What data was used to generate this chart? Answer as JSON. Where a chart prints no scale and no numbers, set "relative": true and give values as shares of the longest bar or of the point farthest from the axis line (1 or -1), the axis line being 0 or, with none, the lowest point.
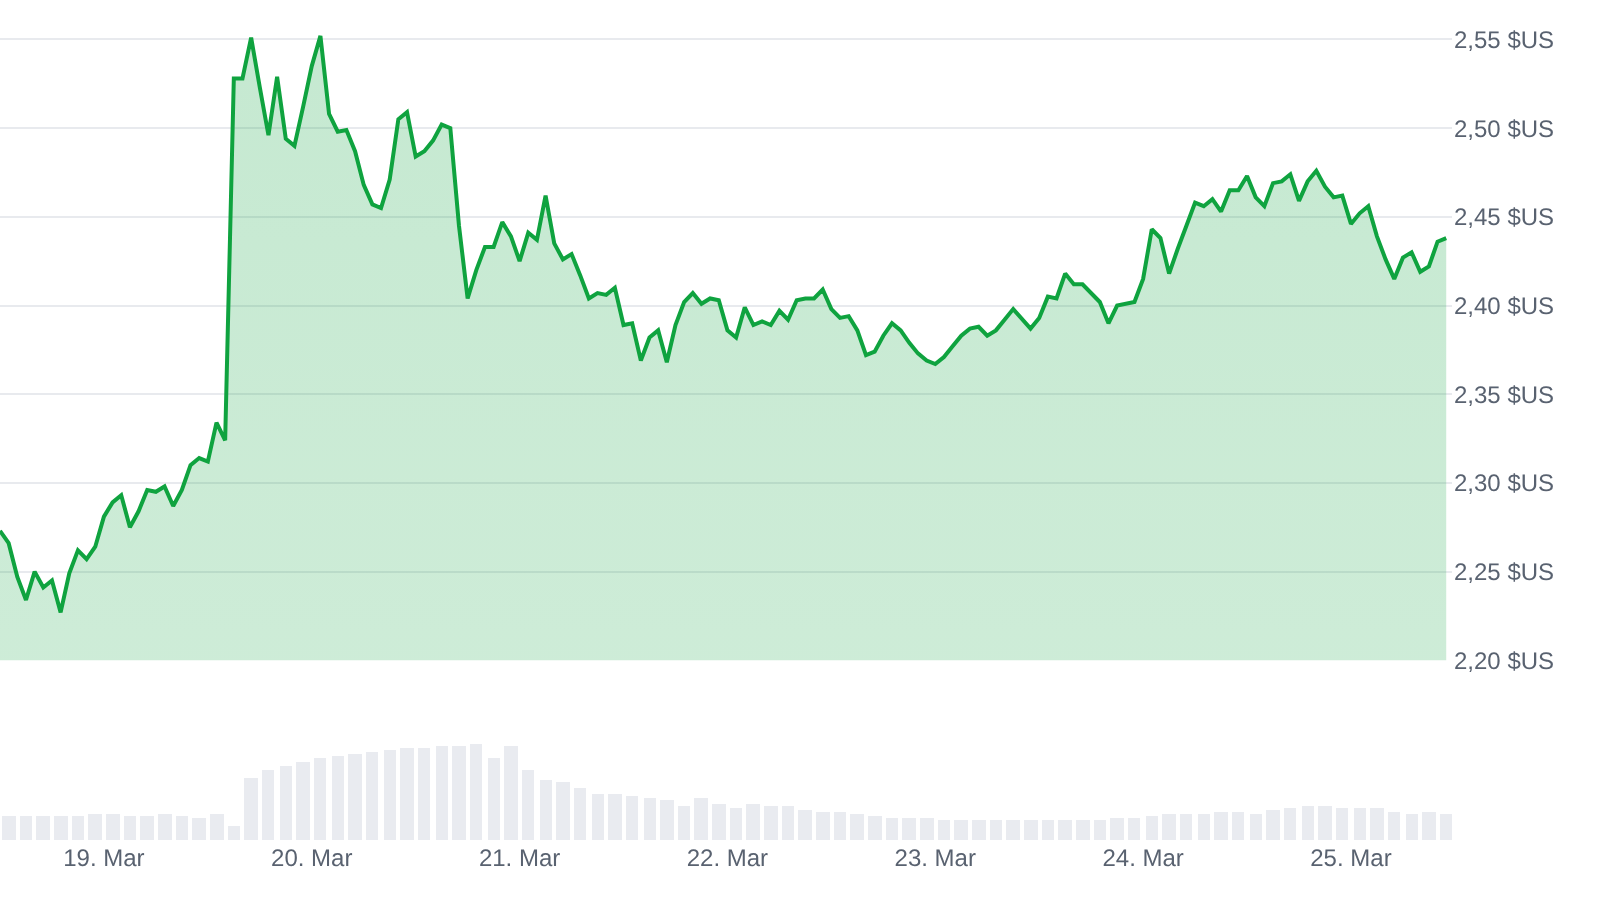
{
  "chart_data": [
    {
      "type": "area",
      "color": "#0fa33f",
      "grid": "y",
      "tick_labels": "y",
      "marker": "none",
      "xlim": [
        "--03-18T12:00",
        "--03-25T11:40"
      ],
      "ylim": [
        2.2,
        2.57
      ],
      "yticks": [
        {
          "value": 2.2,
          "label": "2,20 $US"
        },
        {
          "value": 2.25,
          "label": "2,25 $US"
        },
        {
          "value": 2.3,
          "label": "2,30 $US"
        },
        {
          "value": 2.35,
          "label": "2,35 $US"
        },
        {
          "value": 2.4,
          "label": "2,40 $US"
        },
        {
          "value": 2.45,
          "label": "2,45 $US"
        },
        {
          "value": 2.5,
          "label": "2,50 $US"
        },
        {
          "value": 2.55,
          "label": "2,55 $US"
        }
      ],
      "x": [
        "--03-18T12:00",
        "--03-18T13:00",
        "--03-18T14:00",
        "--03-18T15:00",
        "--03-18T16:00",
        "--03-18T17:00",
        "--03-18T18:00",
        "--03-18T19:00",
        "--03-18T20:00",
        "--03-18T21:00",
        "--03-18T22:00",
        "--03-18T23:00",
        "--03-19T00:00",
        "--03-19T01:00",
        "--03-19T02:00",
        "--03-19T03:00",
        "--03-19T04:00",
        "--03-19T05:00",
        "--03-19T06:00",
        "--03-19T07:00",
        "--03-19T08:00",
        "--03-19T09:00",
        "--03-19T10:00",
        "--03-19T11:00",
        "--03-19T12:00",
        "--03-19T13:00",
        "--03-19T14:00",
        "--03-19T15:00",
        "--03-19T16:00",
        "--03-19T17:00",
        "--03-19T18:00",
        "--03-19T19:00",
        "--03-19T20:00",
        "--03-19T21:00",
        "--03-19T22:00",
        "--03-19T23:00",
        "--03-20T00:00",
        "--03-20T01:00",
        "--03-20T02:00",
        "--03-20T03:00",
        "--03-20T04:00",
        "--03-20T05:00",
        "--03-20T06:00",
        "--03-20T07:00",
        "--03-20T08:00",
        "--03-20T09:00",
        "--03-20T10:00",
        "--03-20T11:00",
        "--03-20T12:00",
        "--03-20T13:00",
        "--03-20T14:00",
        "--03-20T15:00",
        "--03-20T16:00",
        "--03-20T17:00",
        "--03-20T18:00",
        "--03-20T19:00",
        "--03-20T20:00",
        "--03-20T21:00",
        "--03-20T22:00",
        "--03-20T23:00",
        "--03-21T00:00",
        "--03-21T01:00",
        "--03-21T02:00",
        "--03-21T03:00",
        "--03-21T04:00",
        "--03-21T05:00",
        "--03-21T06:00",
        "--03-21T07:00",
        "--03-21T08:00",
        "--03-21T09:00",
        "--03-21T10:00",
        "--03-21T11:00",
        "--03-21T12:00",
        "--03-21T13:00",
        "--03-21T14:00",
        "--03-21T15:00",
        "--03-21T16:00",
        "--03-21T17:00",
        "--03-21T18:00",
        "--03-21T19:00",
        "--03-21T20:00",
        "--03-21T21:00",
        "--03-21T22:00",
        "--03-21T23:00",
        "--03-22T00:00",
        "--03-22T01:00",
        "--03-22T02:00",
        "--03-22T03:00",
        "--03-22T04:00",
        "--03-22T05:00",
        "--03-22T06:00",
        "--03-22T07:00",
        "--03-22T08:00",
        "--03-22T09:00",
        "--03-22T10:00",
        "--03-22T11:00",
        "--03-22T12:00",
        "--03-22T13:00",
        "--03-22T14:00",
        "--03-22T15:00",
        "--03-22T16:00",
        "--03-22T17:00",
        "--03-22T18:00",
        "--03-22T19:00",
        "--03-22T20:00",
        "--03-22T21:00",
        "--03-22T22:00",
        "--03-22T23:00",
        "--03-23T00:00",
        "--03-23T01:00",
        "--03-23T02:00",
        "--03-23T03:00",
        "--03-23T04:00",
        "--03-23T05:00",
        "--03-23T06:00",
        "--03-23T07:00",
        "--03-23T08:00",
        "--03-23T09:00",
        "--03-23T11:00",
        "--03-23T12:00",
        "--03-23T13:00",
        "--03-23T14:00",
        "--03-23T15:00",
        "--03-23T16:00",
        "--03-23T17:00",
        "--03-23T19:00",
        "--03-23T20:00",
        "--03-23T21:00",
        "--03-23T23:00",
        "--03-24T00:00",
        "--03-24T01:00",
        "--03-24T02:00",
        "--03-24T03:00",
        "--03-24T04:00",
        "--03-24T05:00",
        "--03-24T06:00",
        "--03-24T07:00",
        "--03-24T08:00",
        "--03-24T09:00",
        "--03-24T10:00",
        "--03-24T11:00",
        "--03-24T12:00",
        "--03-24T13:00",
        "--03-24T14:00",
        "--03-24T15:00",
        "--03-24T16:00",
        "--03-24T17:00",
        "--03-24T18:00",
        "--03-24T19:00",
        "--03-24T20:00",
        "--03-24T21:00",
        "--03-24T22:00",
        "--03-24T23:00",
        "--03-25T00:00",
        "--03-25T01:00",
        "--03-25T02:00",
        "--03-25T03:00",
        "--03-25T04:00",
        "--03-25T05:00",
        "--03-25T06:00",
        "--03-25T07:00",
        "--03-25T08:00",
        "--03-25T09:00",
        "--03-25T10:00",
        "--03-25T11:00"
      ],
      "values": [
        2.273,
        2.266,
        2.247,
        2.234,
        2.25,
        2.241,
        2.245,
        2.227,
        2.249,
        2.262,
        2.257,
        2.264,
        2.281,
        2.289,
        2.293,
        2.275,
        2.284,
        2.296,
        2.295,
        2.298,
        2.287,
        2.296,
        2.31,
        2.314,
        2.312,
        2.334,
        2.324,
        2.528,
        2.528,
        2.551,
        2.523,
        2.496,
        2.529,
        2.494,
        2.49,
        2.512,
        2.535,
        2.552,
        2.508,
        2.498,
        2.499,
        2.487,
        2.468,
        2.457,
        2.455,
        2.471,
        2.505,
        2.509,
        2.484,
        2.487,
        2.493,
        2.502,
        2.5,
        2.445,
        2.404,
        2.42,
        2.433,
        2.433,
        2.447,
        2.439,
        2.425,
        2.441,
        2.437,
        2.462,
        2.435,
        2.426,
        2.429,
        2.417,
        2.404,
        2.407,
        2.406,
        2.41,
        2.389,
        2.39,
        2.369,
        2.382,
        2.386,
        2.368,
        2.389,
        2.402,
        2.407,
        2.401,
        2.404,
        2.403,
        2.386,
        2.382,
        2.399,
        2.389,
        2.391,
        2.389,
        2.397,
        2.392,
        2.403,
        2.404,
        2.404,
        2.409,
        2.398,
        2.393,
        2.394,
        2.386,
        2.372,
        2.374,
        2.383,
        2.39,
        2.386,
        2.379,
        2.373,
        2.369,
        2.367,
        2.371,
        2.377,
        2.383,
        2.387,
        2.388,
        2.383,
        2.386,
        2.392,
        2.398,
        2.387,
        2.393,
        2.405,
        2.404,
        2.418,
        2.412,
        2.412,
        2.402,
        2.39,
        2.4,
        2.402,
        2.415,
        2.443,
        2.438,
        2.418,
        2.432,
        2.445,
        2.458,
        2.456,
        2.46,
        2.453,
        2.465,
        2.465,
        2.473,
        2.461,
        2.456,
        2.469,
        2.47,
        2.474,
        2.459,
        2.47,
        2.476,
        2.467,
        2.461,
        2.462,
        2.446,
        2.452,
        2.456,
        2.439,
        2.426,
        2.415,
        2.427,
        2.43,
        2.419,
        2.422,
        2.436,
        2.438
      ]
    },
    {
      "type": "bar",
      "relative": true,
      "color": "#e9ebf0",
      "tick_labels": "x",
      "xlim": [
        "--03-18T12:00",
        "--03-25T11:40"
      ],
      "xticks": [
        {
          "value": "--03-19",
          "label": "19. Mar"
        },
        {
          "value": "--03-20",
          "label": "20. Mar"
        },
        {
          "value": "--03-21",
          "label": "21. Mar"
        },
        {
          "value": "--03-22",
          "label": "22. Mar"
        },
        {
          "value": "--03-23",
          "label": "23. Mar"
        },
        {
          "value": "--03-24",
          "label": "24. Mar"
        },
        {
          "value": "--03-25",
          "label": "25. Mar"
        }
      ],
      "x": [
        "--03-18T13:00",
        "--03-18T15:00",
        "--03-18T17:00",
        "--03-18T19:00",
        "--03-18T21:00",
        "--03-18T23:00",
        "--03-19T01:00",
        "--03-19T03:00",
        "--03-19T05:00",
        "--03-19T07:00",
        "--03-19T09:00",
        "--03-19T11:00",
        "--03-19T13:00",
        "--03-19T15:00",
        "--03-19T17:00",
        "--03-19T19:00",
        "--03-19T21:00",
        "--03-19T23:00",
        "--03-20T01:00",
        "--03-20T03:00",
        "--03-20T05:00",
        "--03-20T07:00",
        "--03-20T09:00",
        "--03-20T11:00",
        "--03-20T13:00",
        "--03-20T15:00",
        "--03-20T17:00",
        "--03-20T19:00",
        "--03-20T21:00",
        "--03-20T23:00",
        "--03-21T01:00",
        "--03-21T03:00",
        "--03-21T05:00",
        "--03-21T07:00",
        "--03-21T09:00",
        "--03-21T11:00",
        "--03-21T13:00",
        "--03-21T15:00",
        "--03-21T17:00",
        "--03-21T19:00",
        "--03-21T21:00",
        "--03-21T23:00",
        "--03-22T01:00",
        "--03-22T03:00",
        "--03-22T05:00",
        "--03-22T07:00",
        "--03-22T09:00",
        "--03-22T11:00",
        "--03-22T13:00",
        "--03-22T15:00",
        "--03-22T17:00",
        "--03-22T19:00",
        "--03-22T21:00",
        "--03-22T23:00",
        "--03-23T01:00",
        "--03-23T03:00",
        "--03-23T05:00",
        "--03-23T07:00",
        "--03-23T09:00",
        "--03-23T11:00",
        "--03-23T13:00",
        "--03-23T15:00",
        "--03-23T17:00",
        "--03-23T19:00",
        "--03-23T21:00",
        "--03-23T23:00",
        "--03-24T01:00",
        "--03-24T03:00",
        "--03-24T05:00",
        "--03-24T07:00",
        "--03-24T09:00",
        "--03-24T11:00",
        "--03-24T13:00",
        "--03-24T15:00",
        "--03-24T17:00",
        "--03-24T19:00",
        "--03-24T21:00",
        "--03-24T23:00",
        "--03-25T01:00",
        "--03-25T03:00",
        "--03-25T05:00",
        "--03-25T07:00",
        "--03-25T09:00",
        "--03-25T11:00"
      ],
      "values": [
        0.26,
        0.26,
        0.26,
        0.26,
        0.26,
        0.27,
        0.28,
        0.26,
        0.25,
        0.27,
        0.26,
        0.24,
        0.28,
        0.14,
        0.65,
        0.72,
        0.77,
        0.81,
        0.85,
        0.88,
        0.9,
        0.92,
        0.93,
        0.95,
        0.96,
        0.97,
        0.97,
        1.0,
        0.85,
        0.97,
        0.74,
        0.62,
        0.6,
        0.55,
        0.47,
        0.48,
        0.46,
        0.44,
        0.42,
        0.35,
        0.43,
        0.38,
        0.33,
        0.38,
        0.36,
        0.35,
        0.32,
        0.3,
        0.3,
        0.27,
        0.25,
        0.24,
        0.22,
        0.22,
        0.21,
        0.21,
        0.2,
        0.2,
        0.2,
        0.2,
        0.2,
        0.21,
        0.2,
        0.21,
        0.22,
        0.24,
        0.25,
        0.27,
        0.27,
        0.28,
        0.3,
        0.3,
        0.27,
        0.31,
        0.33,
        0.35,
        0.35,
        0.34,
        0.33,
        0.33,
        0.3,
        0.27,
        0.3,
        0.27
      ]
    }
  ]
}
